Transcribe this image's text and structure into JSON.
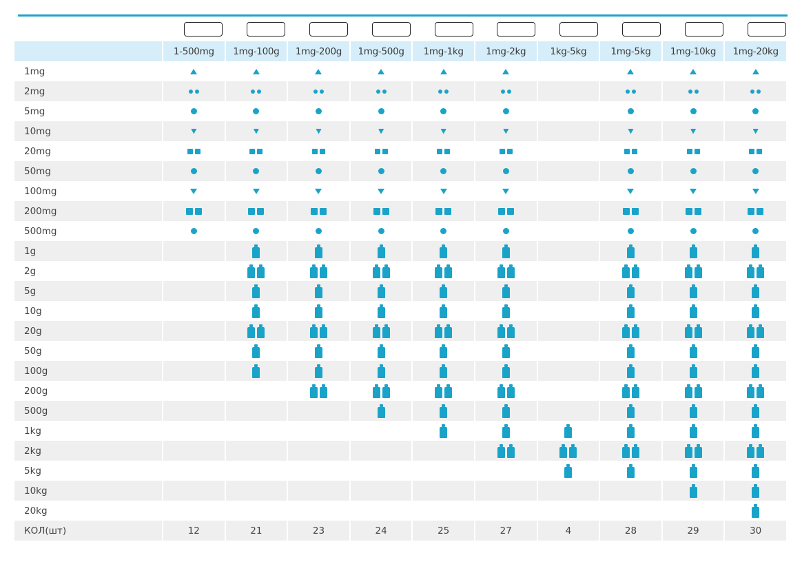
{
  "accent_color": "#1aa3c9",
  "columns": [
    "1-500mg",
    "1mg-100g",
    "1mg-200g",
    "1mg-500g",
    "1mg-1kg",
    "1mg-2kg",
    "1kg-5kg",
    "1mg-5kg",
    "1mg-10kg",
    "1mg-20kg"
  ],
  "rows": [
    {
      "label": "1mg",
      "icon": "triangle-icon",
      "present": [
        1,
        1,
        1,
        1,
        1,
        1,
        0,
        1,
        1,
        1
      ]
    },
    {
      "label": "2mg",
      "icon": "double-dot-icon",
      "present": [
        1,
        1,
        1,
        1,
        1,
        1,
        0,
        1,
        1,
        1
      ]
    },
    {
      "label": "5mg",
      "icon": "hexagon-icon",
      "present": [
        1,
        1,
        1,
        1,
        1,
        1,
        0,
        1,
        1,
        1
      ]
    },
    {
      "label": "10mg",
      "icon": "heart-icon",
      "present": [
        1,
        1,
        1,
        1,
        1,
        1,
        0,
        1,
        1,
        1
      ]
    },
    {
      "label": "20mg",
      "icon": "double-square-icon",
      "present": [
        1,
        1,
        1,
        1,
        1,
        1,
        0,
        1,
        1,
        1
      ]
    },
    {
      "label": "50mg",
      "icon": "hexagon-icon",
      "present": [
        1,
        1,
        1,
        1,
        1,
        1,
        0,
        1,
        1,
        1
      ]
    },
    {
      "label": "100mg",
      "icon": "triangle-down-icon",
      "present": [
        1,
        1,
        1,
        1,
        1,
        1,
        0,
        1,
        1,
        1
      ]
    },
    {
      "label": "200mg",
      "icon": "double-square-large-icon",
      "present": [
        1,
        1,
        1,
        1,
        1,
        1,
        0,
        1,
        1,
        1
      ]
    },
    {
      "label": "500mg",
      "icon": "hexagon-icon",
      "present": [
        1,
        1,
        1,
        1,
        1,
        1,
        0,
        1,
        1,
        1
      ]
    },
    {
      "label": "1g",
      "icon": "weight-icon",
      "present": [
        0,
        1,
        1,
        1,
        1,
        1,
        0,
        1,
        1,
        1
      ]
    },
    {
      "label": "2g",
      "icon": "double-weight-icon",
      "present": [
        0,
        1,
        1,
        1,
        1,
        1,
        0,
        1,
        1,
        1
      ]
    },
    {
      "label": "5g",
      "icon": "weight-icon",
      "present": [
        0,
        1,
        1,
        1,
        1,
        1,
        0,
        1,
        1,
        1
      ]
    },
    {
      "label": "10g",
      "icon": "weight-icon",
      "present": [
        0,
        1,
        1,
        1,
        1,
        1,
        0,
        1,
        1,
        1
      ]
    },
    {
      "label": "20g",
      "icon": "double-weight-icon",
      "present": [
        0,
        1,
        1,
        1,
        1,
        1,
        0,
        1,
        1,
        1
      ]
    },
    {
      "label": "50g",
      "icon": "weight-icon",
      "present": [
        0,
        1,
        1,
        1,
        1,
        1,
        0,
        1,
        1,
        1
      ]
    },
    {
      "label": "100g",
      "icon": "weight-icon",
      "present": [
        0,
        1,
        1,
        1,
        1,
        1,
        0,
        1,
        1,
        1
      ]
    },
    {
      "label": "200g",
      "icon": "double-weight-icon",
      "present": [
        0,
        0,
        1,
        1,
        1,
        1,
        0,
        1,
        1,
        1
      ]
    },
    {
      "label": "500g",
      "icon": "weight-icon",
      "present": [
        0,
        0,
        0,
        1,
        1,
        1,
        0,
        1,
        1,
        1
      ]
    },
    {
      "label": "1kg",
      "icon": "weight-icon",
      "present": [
        0,
        0,
        0,
        0,
        1,
        1,
        1,
        1,
        1,
        1
      ]
    },
    {
      "label": "2kg",
      "icon": "double-weight-icon",
      "present": [
        0,
        0,
        0,
        0,
        0,
        1,
        1,
        1,
        1,
        1
      ]
    },
    {
      "label": "5kg",
      "icon": "weight-icon",
      "present": [
        0,
        0,
        0,
        0,
        0,
        0,
        1,
        1,
        1,
        1
      ]
    },
    {
      "label": "10kg",
      "icon": "weight-icon",
      "present": [
        0,
        0,
        0,
        0,
        0,
        0,
        0,
        0,
        1,
        1
      ]
    },
    {
      "label": "20kg",
      "icon": "weight-icon",
      "present": [
        0,
        0,
        0,
        0,
        0,
        0,
        0,
        0,
        0,
        1
      ]
    }
  ],
  "total": {
    "label": "КОЛ(шт)",
    "values": [
      "12",
      "21",
      "23",
      "24",
      "25",
      "27",
      "4",
      "28",
      "29",
      "30"
    ]
  }
}
